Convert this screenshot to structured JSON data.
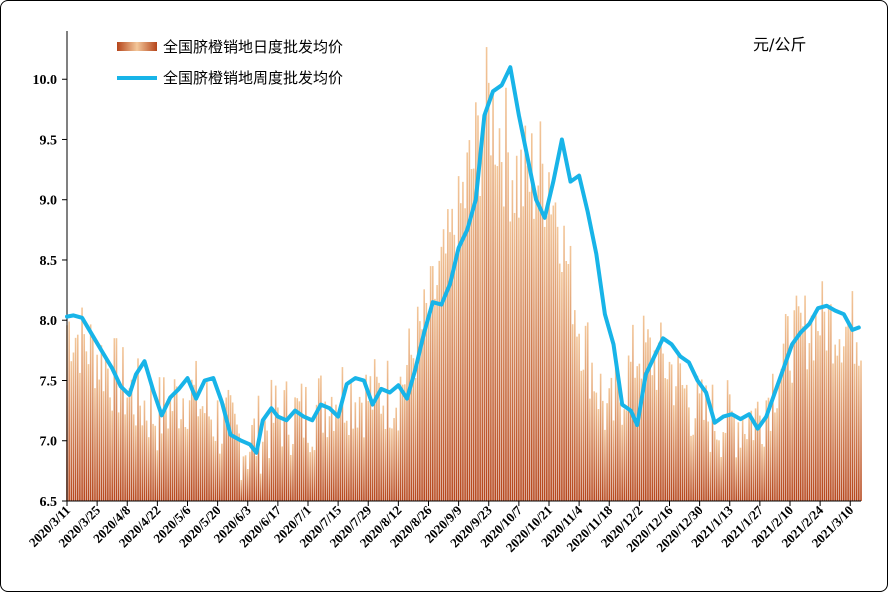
{
  "chart_data": {
    "type": "bar+line",
    "unit_label": "元/公斤",
    "ylim": [
      6.5,
      10.4
    ],
    "yticks": [
      "6.5",
      "7.0",
      "7.5",
      "8.0",
      "8.5",
      "9.0",
      "9.5",
      "10.0"
    ],
    "xlim": [
      "2020/3/11",
      "2021/3/15"
    ],
    "xticks": [
      "2020/3/11",
      "2020/3/25",
      "2020/4/8",
      "2020/4/22",
      "2020/5/6",
      "2020/5/20",
      "2020/6/3",
      "2020/6/17",
      "2020/7/1",
      "2020/7/15",
      "2020/7/29",
      "2020/8/12",
      "2020/8/26",
      "2020/9/9",
      "2020/9/23",
      "2020/10/7",
      "2020/10/21",
      "2020/11/4",
      "2020/11/18",
      "2020/12/2",
      "2020/12/16",
      "2020/12/30",
      "2021/1/13",
      "2021/1/27",
      "2021/2/10",
      "2021/2/24",
      "2021/3/10"
    ],
    "series": [
      {
        "name": "全国脐橙销地日度批发均价",
        "kind": "bar",
        "color_light": "#f3c79a",
        "color_dark": "#b5451b",
        "anchors": [
          [
            "2020/3/11",
            8.0
          ],
          [
            "2020/3/25",
            7.75
          ],
          [
            "2020/4/8",
            7.45
          ],
          [
            "2020/4/22",
            7.25
          ],
          [
            "2020/5/6",
            7.45
          ],
          [
            "2020/5/20",
            7.2
          ],
          [
            "2020/6/3",
            7.0
          ],
          [
            "2020/6/17",
            7.25
          ],
          [
            "2020/7/1",
            7.25
          ],
          [
            "2020/7/15",
            7.45
          ],
          [
            "2020/7/29",
            7.4
          ],
          [
            "2020/8/12",
            7.45
          ],
          [
            "2020/8/26",
            8.1
          ],
          [
            "2020/9/9",
            8.9
          ],
          [
            "2020/9/23",
            9.85
          ],
          [
            "2020/10/7",
            9.2
          ],
          [
            "2020/10/21",
            9.3
          ],
          [
            "2020/11/4",
            8.0
          ],
          [
            "2020/11/18",
            7.2
          ],
          [
            "2020/12/2",
            7.8
          ],
          [
            "2020/12/16",
            7.65
          ],
          [
            "2020/12/30",
            7.25
          ],
          [
            "2021/1/13",
            7.2
          ],
          [
            "2021/1/27",
            7.25
          ],
          [
            "2021/2/10",
            7.85
          ],
          [
            "2021/2/24",
            8.05
          ],
          [
            "2021/3/14",
            7.95
          ]
        ]
      },
      {
        "name": "全国脐橙销地周度批发均价",
        "kind": "line",
        "color": "#18b4e8",
        "points": [
          [
            "2020/3/11",
            8.03
          ],
          [
            "2020/3/14",
            8.04
          ],
          [
            "2020/3/18",
            8.02
          ],
          [
            "2020/3/22",
            7.9
          ],
          [
            "2020/3/27",
            7.75
          ],
          [
            "2020/4/1",
            7.6
          ],
          [
            "2020/4/5",
            7.45
          ],
          [
            "2020/4/9",
            7.38
          ],
          [
            "2020/4/12",
            7.55
          ],
          [
            "2020/4/16",
            7.66
          ],
          [
            "2020/4/20",
            7.42
          ],
          [
            "2020/4/24",
            7.21
          ],
          [
            "2020/4/28",
            7.36
          ],
          [
            "2020/5/2",
            7.43
          ],
          [
            "2020/5/6",
            7.52
          ],
          [
            "2020/5/10",
            7.35
          ],
          [
            "2020/5/14",
            7.5
          ],
          [
            "2020/5/18",
            7.52
          ],
          [
            "2020/5/22",
            7.32
          ],
          [
            "2020/5/26",
            7.05
          ],
          [
            "2020/5/31",
            7.0
          ],
          [
            "2020/6/4",
            6.97
          ],
          [
            "2020/6/7",
            6.9
          ],
          [
            "2020/6/10",
            7.17
          ],
          [
            "2020/6/14",
            7.27
          ],
          [
            "2020/6/17",
            7.2
          ],
          [
            "2020/6/21",
            7.17
          ],
          [
            "2020/6/25",
            7.25
          ],
          [
            "2020/6/29",
            7.2
          ],
          [
            "2020/7/3",
            7.17
          ],
          [
            "2020/7/7",
            7.3
          ],
          [
            "2020/7/11",
            7.27
          ],
          [
            "2020/7/15",
            7.2
          ],
          [
            "2020/7/19",
            7.47
          ],
          [
            "2020/7/23",
            7.52
          ],
          [
            "2020/7/27",
            7.5
          ],
          [
            "2020/7/31",
            7.3
          ],
          [
            "2020/8/4",
            7.43
          ],
          [
            "2020/8/8",
            7.4
          ],
          [
            "2020/8/12",
            7.46
          ],
          [
            "2020/8/16",
            7.35
          ],
          [
            "2020/8/20",
            7.6
          ],
          [
            "2020/8/24",
            7.9
          ],
          [
            "2020/8/28",
            8.15
          ],
          [
            "2020/9/1",
            8.13
          ],
          [
            "2020/9/5",
            8.3
          ],
          [
            "2020/9/9",
            8.6
          ],
          [
            "2020/9/13",
            8.75
          ],
          [
            "2020/9/17",
            9.0
          ],
          [
            "2020/9/21",
            9.7
          ],
          [
            "2020/9/25",
            9.9
          ],
          [
            "2020/9/29",
            9.95
          ],
          [
            "2020/10/3",
            10.1
          ],
          [
            "2020/10/7",
            9.7
          ],
          [
            "2020/10/11",
            9.35
          ],
          [
            "2020/10/15",
            9.0
          ],
          [
            "2020/10/19",
            8.85
          ],
          [
            "2020/10/23",
            9.15
          ],
          [
            "2020/10/27",
            9.5
          ],
          [
            "2020/10/31",
            9.15
          ],
          [
            "2020/11/4",
            9.2
          ],
          [
            "2020/11/8",
            8.9
          ],
          [
            "2020/11/12",
            8.55
          ],
          [
            "2020/11/16",
            8.05
          ],
          [
            "2020/11/20",
            7.8
          ],
          [
            "2020/11/24",
            7.3
          ],
          [
            "2020/11/28",
            7.25
          ],
          [
            "2020/12/1",
            7.13
          ],
          [
            "2020/12/5",
            7.55
          ],
          [
            "2020/12/9",
            7.7
          ],
          [
            "2020/12/13",
            7.85
          ],
          [
            "2020/12/17",
            7.8
          ],
          [
            "2020/12/21",
            7.7
          ],
          [
            "2020/12/25",
            7.65
          ],
          [
            "2020/12/29",
            7.5
          ],
          [
            "2021/1/2",
            7.4
          ],
          [
            "2021/1/6",
            7.15
          ],
          [
            "2021/1/10",
            7.2
          ],
          [
            "2021/1/14",
            7.22
          ],
          [
            "2021/1/18",
            7.18
          ],
          [
            "2021/1/22",
            7.22
          ],
          [
            "2021/1/26",
            7.1
          ],
          [
            "2021/1/30",
            7.2
          ],
          [
            "2021/2/3",
            7.4
          ],
          [
            "2021/2/7",
            7.6
          ],
          [
            "2021/2/11",
            7.8
          ],
          [
            "2021/2/15",
            7.9
          ],
          [
            "2021/2/19",
            7.97
          ],
          [
            "2021/2/23",
            8.1
          ],
          [
            "2021/2/27",
            8.12
          ],
          [
            "2021/3/3",
            8.08
          ],
          [
            "2021/3/7",
            8.05
          ],
          [
            "2021/3/11",
            7.92
          ],
          [
            "2021/3/14",
            7.94
          ]
        ]
      }
    ],
    "legend_position": "top-left",
    "grid": false
  }
}
